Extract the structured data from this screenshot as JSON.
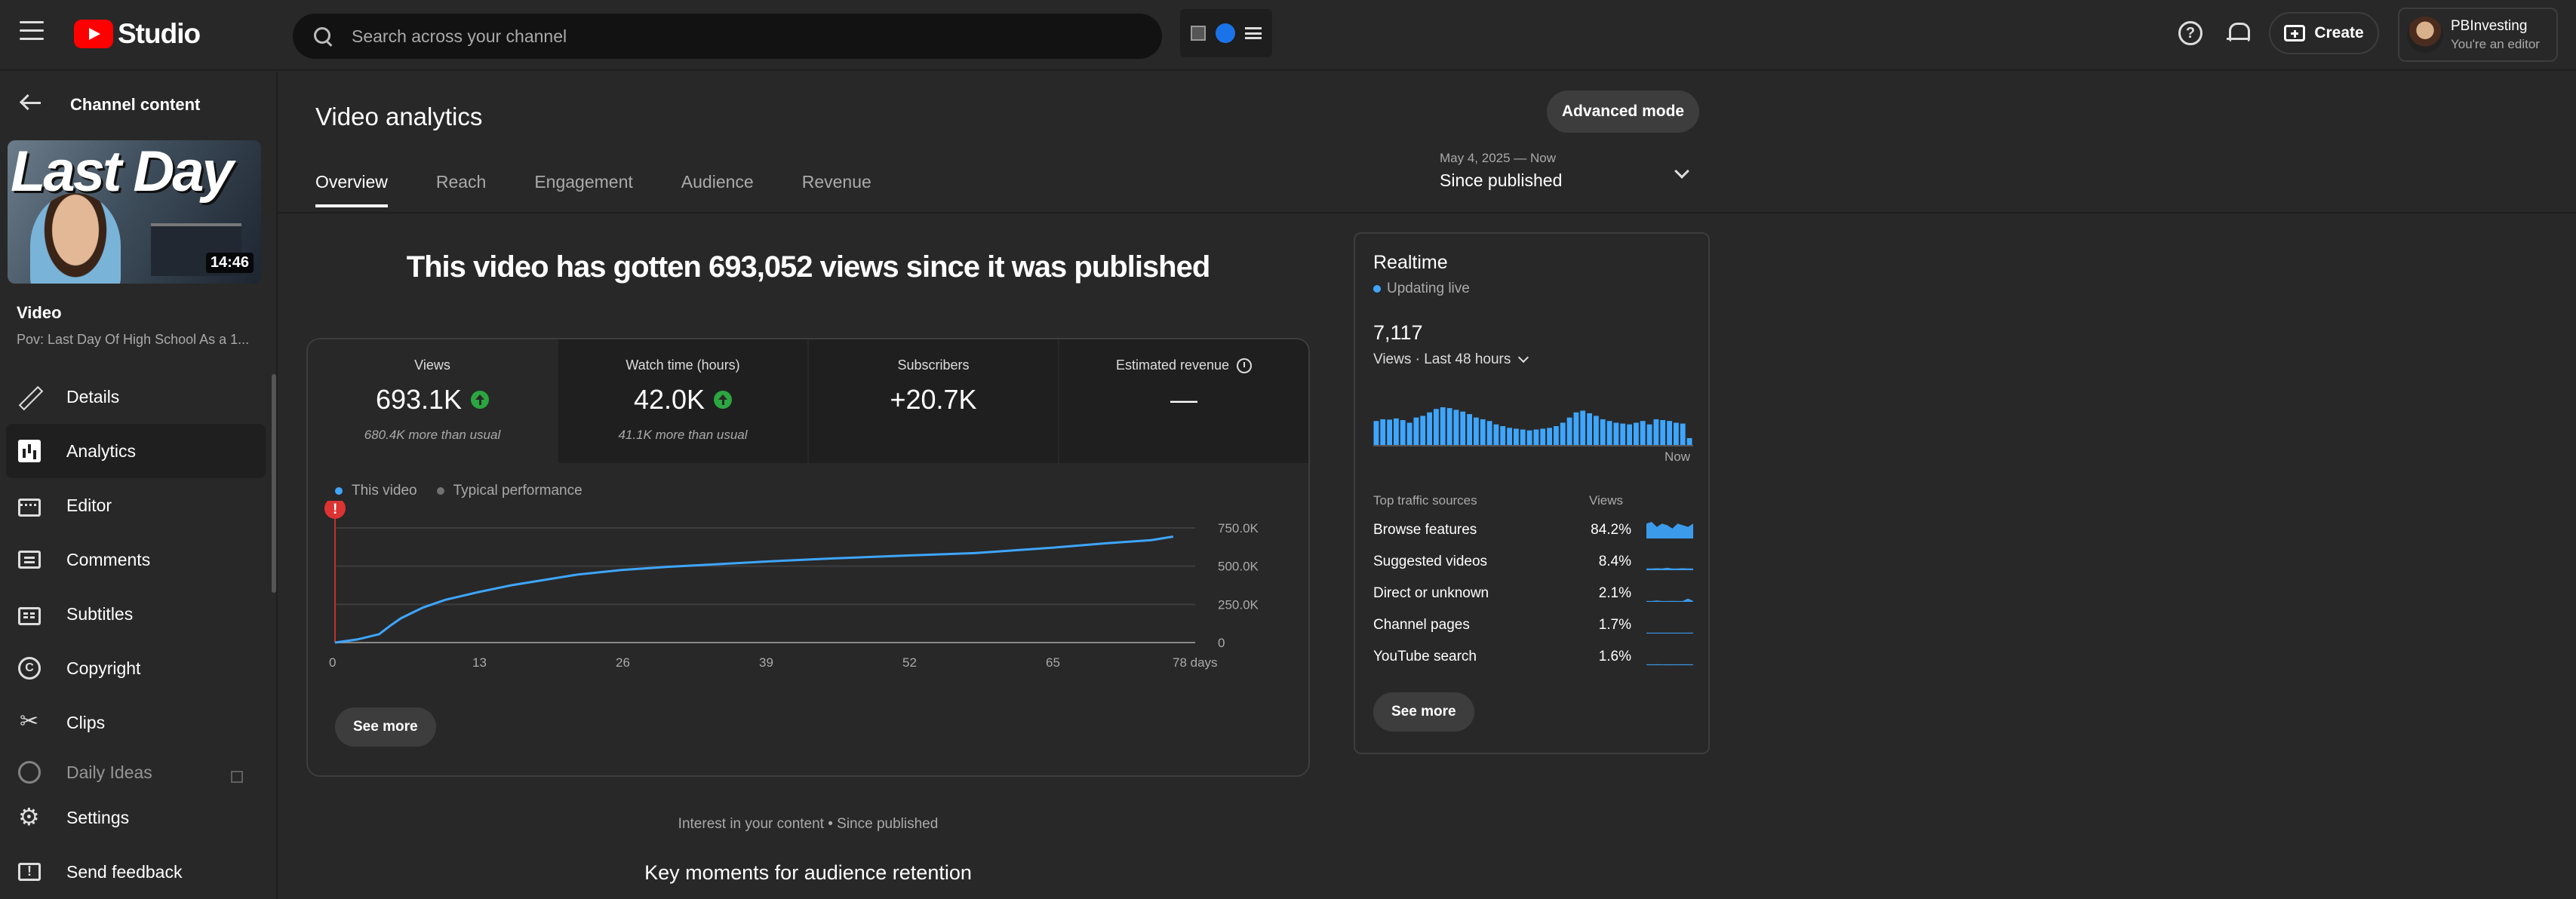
{
  "header": {
    "logo_text": "Studio",
    "search_placeholder": "Search across your channel",
    "create_label": "Create",
    "account_name": "PBInvesting",
    "account_role": "You're an editor",
    "help_symbol": "?"
  },
  "sidebar": {
    "title": "Channel content",
    "video": {
      "thumbnail_text": "Last Day",
      "duration": "14:46",
      "label": "Video",
      "title": "Pov: Last Day Of High School As a 1..."
    },
    "items": [
      {
        "label": "Details",
        "icon": "pencil-icon"
      },
      {
        "label": "Analytics",
        "icon": "analytics-icon",
        "active": true
      },
      {
        "label": "Editor",
        "icon": "editor-icon"
      },
      {
        "label": "Comments",
        "icon": "comments-icon"
      },
      {
        "label": "Subtitles",
        "icon": "subtitles-icon"
      },
      {
        "label": "Copyright",
        "icon": "copyright-icon"
      },
      {
        "label": "Clips",
        "icon": "scissors-icon"
      },
      {
        "label": "Daily Ideas",
        "icon": "ideas-icon"
      }
    ],
    "bottom": [
      {
        "label": "Settings",
        "icon": "gear-icon"
      },
      {
        "label": "Send feedback",
        "icon": "feedback-icon"
      }
    ],
    "copyright_symbol": "C"
  },
  "main": {
    "title": "Video analytics",
    "advanced_mode_label": "Advanced mode",
    "tabs": [
      {
        "label": "Overview",
        "active": true
      },
      {
        "label": "Reach"
      },
      {
        "label": "Engagement"
      },
      {
        "label": "Audience"
      },
      {
        "label": "Revenue"
      }
    ],
    "date_range": {
      "sub": "May 4, 2025 — Now",
      "main": "Since published"
    },
    "headline": "This video has gotten 693,052 views since it was published",
    "kpis": [
      {
        "label": "Views",
        "value": "693.1K",
        "up": true,
        "sub": "680.4K more than usual"
      },
      {
        "label": "Watch time (hours)",
        "value": "42.0K",
        "up": true,
        "sub": "41.1K more than usual"
      },
      {
        "label": "Subscribers",
        "value": "+20.7K",
        "up": false,
        "sub": ""
      },
      {
        "label": "Estimated revenue",
        "value": "—",
        "up": false,
        "sub": ""
      }
    ],
    "legend": {
      "this_video": "This video",
      "typical": "Typical performance"
    },
    "see_more_label": "See more",
    "interest_text": "Interest in your content • Since published",
    "key_moments_title": "Key moments for audience retention",
    "annotation_marker": "!"
  },
  "chart_data": {
    "type": "line",
    "x_ticks": [
      "0",
      "13",
      "26",
      "39",
      "52",
      "65",
      "78 days"
    ],
    "y_ticks": [
      "0",
      "250.0K",
      "500.0K",
      "750.0K"
    ],
    "ylim": [
      0,
      750000
    ],
    "xlim": [
      0,
      78
    ],
    "series": [
      {
        "name": "This video",
        "color": "#3ea6ff",
        "x": [
          0,
          2,
          4,
          5,
          6,
          8,
          10,
          13,
          16,
          19,
          22,
          26,
          30,
          34,
          39,
          45,
          52,
          58,
          65,
          70,
          74,
          76
        ],
        "y": [
          0,
          20000,
          55000,
          110000,
          160000,
          230000,
          280000,
          330000,
          375000,
          410000,
          445000,
          475000,
          495000,
          510000,
          530000,
          550000,
          570000,
          585000,
          620000,
          650000,
          670000,
          693052
        ]
      }
    ]
  },
  "realtime": {
    "title": "Realtime",
    "live_label": "Updating live",
    "value": "7,117",
    "period_label": "Views · Last 48 hours",
    "now_label": "Now",
    "bars": [
      140,
      150,
      148,
      155,
      145,
      130,
      160,
      170,
      190,
      210,
      220,
      215,
      205,
      195,
      180,
      160,
      150,
      140,
      120,
      110,
      100,
      95,
      90,
      85,
      90,
      95,
      100,
      110,
      130,
      160,
      190,
      200,
      185,
      170,
      150,
      140,
      130,
      125,
      120,
      130,
      140,
      120,
      150,
      145,
      140,
      130,
      125,
      40
    ],
    "traffic_header": {
      "name": "Top traffic sources",
      "views": "Views"
    },
    "traffic_sources": [
      {
        "name": "Browse features",
        "pct": "84.2%",
        "spark": [
          0.9,
          1,
          0.7,
          0.9,
          0.8,
          0.6,
          0.9,
          0.8,
          0.7,
          0.9
        ]
      },
      {
        "name": "Suggested videos",
        "pct": "8.4%",
        "spark": [
          0.1,
          0.1,
          0.12,
          0.1,
          0.15,
          0.1,
          0.1,
          0.12,
          0.1,
          0.1
        ]
      },
      {
        "name": "Direct or unknown",
        "pct": "2.1%",
        "spark": [
          0.05,
          0.05,
          0.08,
          0.05,
          0.05,
          0.06,
          0.05,
          0.05,
          0.2,
          0.05
        ]
      },
      {
        "name": "Channel pages",
        "pct": "1.7%",
        "spark": [
          0.05,
          0.05,
          0.05,
          0.05,
          0.05,
          0.05,
          0.05,
          0.05,
          0.05,
          0.05
        ]
      },
      {
        "name": "YouTube search",
        "pct": "1.6%",
        "spark": [
          0.05,
          0.05,
          0.06,
          0.05,
          0.05,
          0.05,
          0.05,
          0.06,
          0.05,
          0.05
        ]
      }
    ],
    "see_more_label": "See more"
  }
}
